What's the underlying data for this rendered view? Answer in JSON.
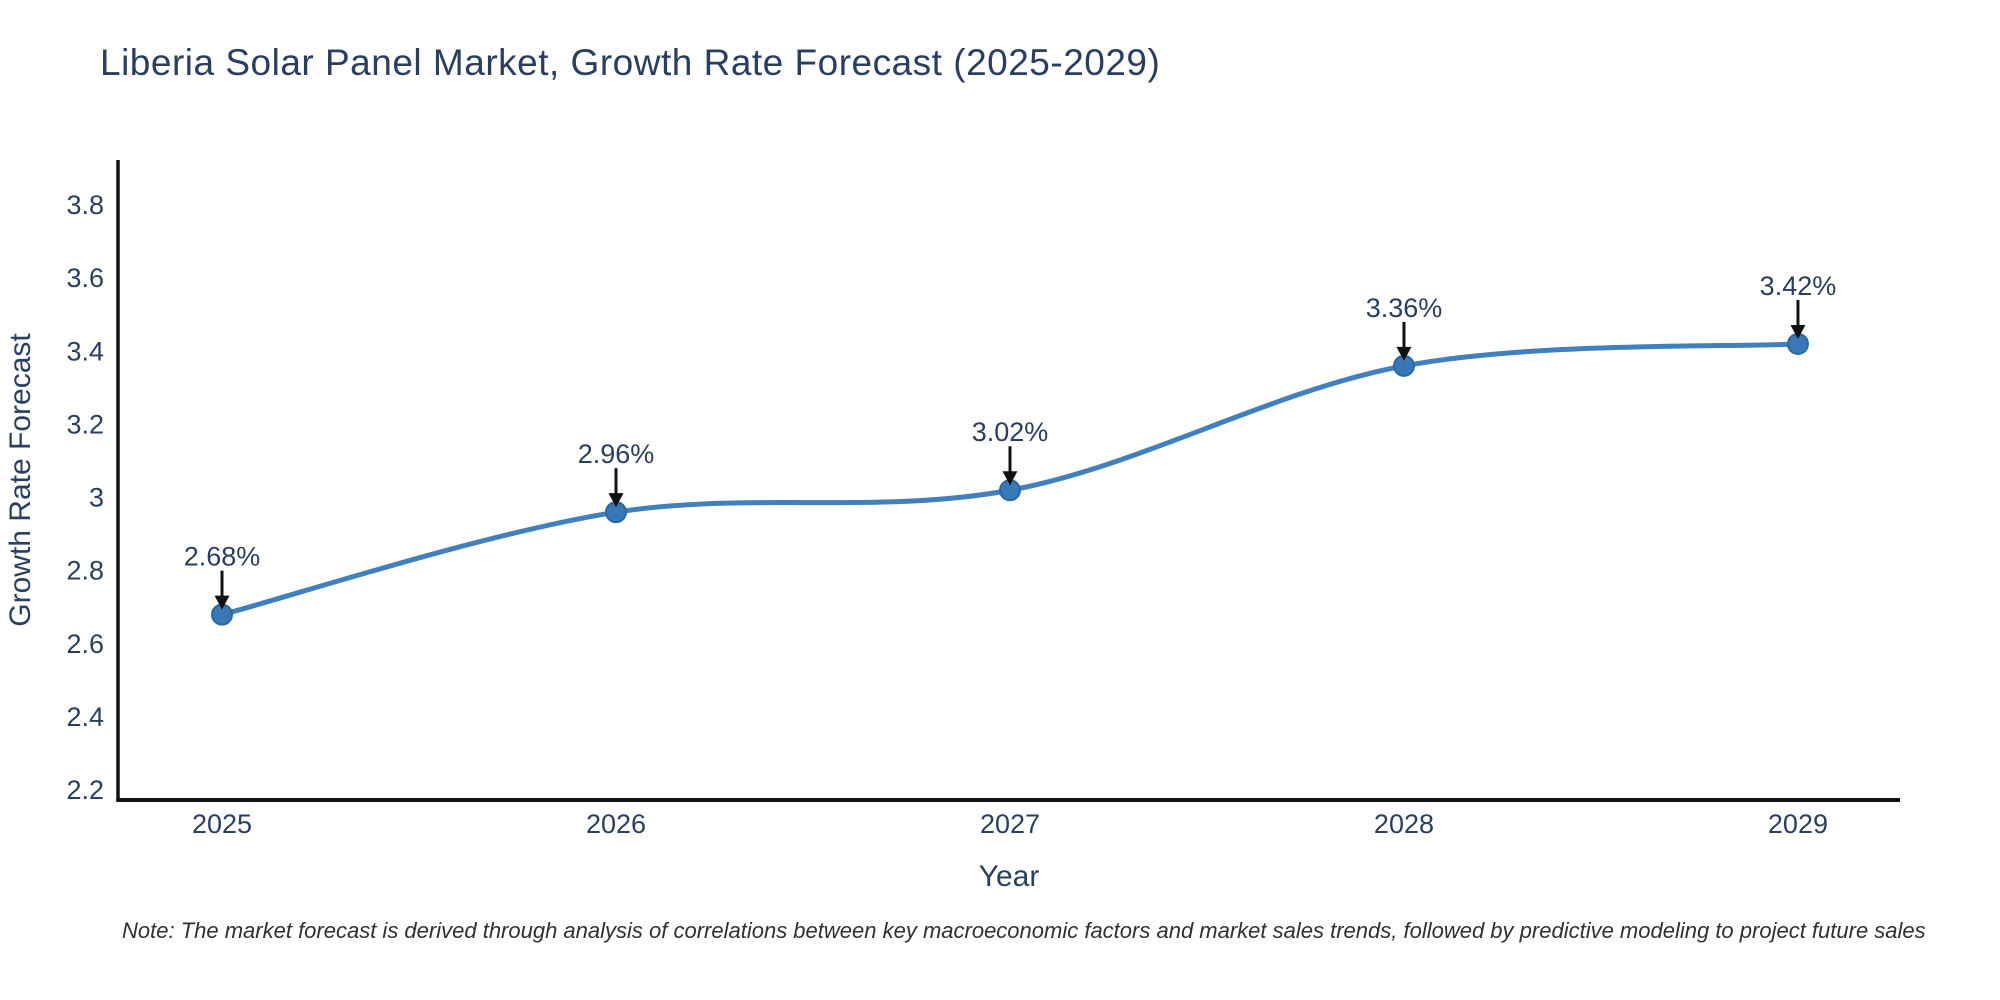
{
  "title": "Liberia Solar Panel Market, Growth Rate Forecast (2025-2029)",
  "footnote": "Note: The market forecast is derived through analysis of correlations between key macroeconomic factors and market sales trends, followed by predictive modeling to project future sales",
  "chart_data": {
    "type": "line",
    "title": "Liberia Solar Panel Market, Growth Rate Forecast (2025-2029)",
    "x": [
      2025,
      2026,
      2027,
      2028,
      2029
    ],
    "series": [
      {
        "name": "Growth Rate Forecast",
        "values": [
          2.68,
          2.96,
          3.02,
          3.36,
          3.42
        ]
      }
    ],
    "point_labels": [
      "2.68%",
      "2.96%",
      "3.02%",
      "3.36%",
      "3.42%"
    ],
    "xlabel": "Year",
    "ylabel": "Growth Rate Forecast",
    "x_ticks": [
      2025,
      2026,
      2027,
      2028,
      2029
    ],
    "y_ticks": [
      2.2,
      2.4,
      2.6,
      2.8,
      3,
      3.2,
      3.4,
      3.6,
      3.8
    ],
    "xlim": [
      2024.736,
      2029.259
    ],
    "ylim": [
      2.173,
      3.923
    ],
    "line_shape": "spline",
    "grid": false,
    "legend": false,
    "colors": {
      "line": "#417fbd",
      "marker": "#3878b7",
      "marker_edge": "#2a699e",
      "text": "#2a3f5f",
      "axis_line": "#111111",
      "arrow": "#111111",
      "note_text": "#303030",
      "background": "#ffffff"
    }
  }
}
